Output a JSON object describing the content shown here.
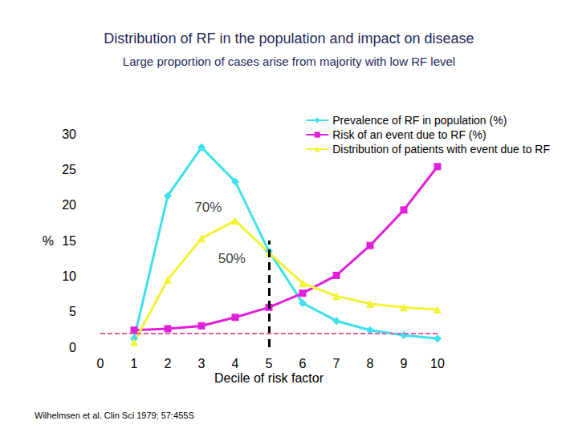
{
  "chart_data": {
    "type": "line",
    "title": "Distribution of RF in the population and impact on disease",
    "subtitle": "Large proportion of cases arise from majority with low RF level",
    "x_label": "Decile of risk factor",
    "y_label": "%",
    "x": [
      1,
      2,
      3,
      4,
      5,
      6,
      7,
      8,
      9,
      10
    ],
    "series": [
      {
        "name": "Prevalence of RF in population (%)",
        "color": "#3ee0ec",
        "marker": "diamond",
        "values": [
          1.2,
          21.3,
          28.1,
          23.3,
          13.5,
          6.2,
          3.7,
          2.4,
          1.7,
          1.2
        ]
      },
      {
        "name": "Risk of an event due to RF (%)",
        "color": "#e020d8",
        "marker": "square",
        "values": [
          2.4,
          2.6,
          3.0,
          4.2,
          5.6,
          7.6,
          10.1,
          14.3,
          19.3,
          25.4
        ]
      },
      {
        "name": "Distribution of patients with event due to RF",
        "color": "#f2f236",
        "marker": "triangle",
        "values": [
          0.7,
          9.5,
          15.3,
          17.8,
          13.3,
          9.0,
          7.2,
          6.1,
          5.6,
          5.3
        ]
      }
    ],
    "annotations": [
      {
        "text": "70%",
        "x": 3.2,
        "y": 19.7
      },
      {
        "text": "50%",
        "x": 3.9,
        "y": 12.5
      }
    ],
    "divider": {
      "x": 5,
      "y": [
        0,
        15
      ]
    },
    "reference_line": 2,
    "source": "Wilhelmsen et al. Clin Sci 1979; 57:455S",
    "xlim": [
      0,
      10
    ],
    "xticks": [
      0,
      1,
      2,
      3,
      4,
      5,
      6,
      7,
      8,
      9,
      10
    ],
    "ylim": [
      0,
      30
    ],
    "yticks": [
      0,
      5,
      10,
      15,
      20,
      25,
      30
    ],
    "grid": false,
    "legend": "top-right"
  }
}
